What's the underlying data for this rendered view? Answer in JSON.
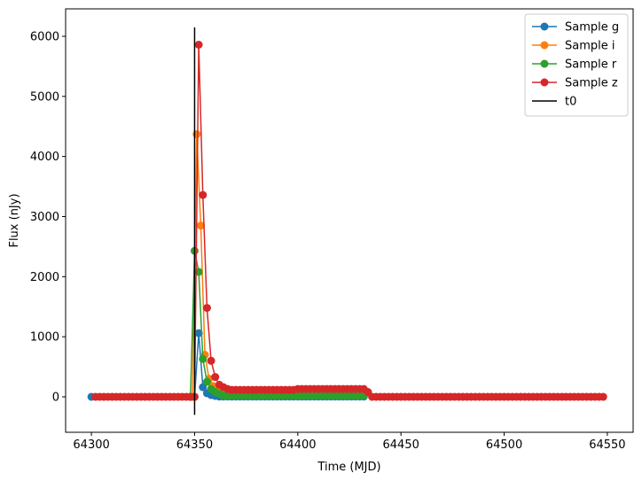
{
  "chart_data": {
    "type": "line",
    "xlabel": "Time (MJD)",
    "ylabel": "Flux (nJy)",
    "xlim": [
      64287.5,
      64562.5
    ],
    "ylim": [
      -590,
      6457
    ],
    "xticks": [
      64300,
      64350,
      64400,
      64450,
      64500,
      64550
    ],
    "yticks": [
      0,
      1000,
      2000,
      3000,
      4000,
      5000,
      6000
    ],
    "legend": "upper right",
    "series": [
      {
        "name": "Sample g",
        "color": "#1f77b4",
        "markers": true,
        "x": [
          64300,
          64348,
          64350,
          64352,
          64354,
          64356,
          64358,
          64360,
          64362,
          64364,
          64366,
          64368,
          64370,
          64372,
          64374,
          64376,
          64378,
          64380,
          64382,
          64384,
          64386,
          64388,
          64390,
          64392,
          64394,
          64396,
          64398,
          64400,
          64402,
          64404,
          64406,
          64408,
          64410,
          64412,
          64414,
          64416,
          64418,
          64420,
          64422,
          64424,
          64426,
          64428,
          64430,
          64432
        ],
        "values": [
          0,
          0,
          0,
          1060,
          160,
          60,
          30,
          15,
          5,
          5,
          5,
          5,
          5,
          5,
          5,
          5,
          5,
          5,
          5,
          5,
          5,
          5,
          5,
          5,
          5,
          5,
          5,
          5,
          5,
          5,
          5,
          5,
          5,
          5,
          5,
          5,
          5,
          5,
          5,
          5,
          5,
          5,
          5,
          5
        ]
      },
      {
        "name": "Sample i",
        "color": "#ff7f0e",
        "markers": true,
        "x": [
          64349,
          64351,
          64353,
          64355,
          64357,
          64359,
          64361,
          64363,
          64365,
          64367,
          64369,
          64371,
          64373,
          64375,
          64377,
          64379,
          64381,
          64383,
          64385,
          64387,
          64389,
          64391,
          64393,
          64395,
          64397,
          64399,
          64401,
          64403,
          64405,
          64407,
          64409,
          64411,
          64413,
          64415,
          64417,
          64419,
          64421,
          64423,
          64425,
          64427,
          64429,
          64431,
          64433
        ],
        "values": [
          0,
          4370,
          2850,
          700,
          300,
          180,
          120,
          90,
          60,
          60,
          60,
          60,
          60,
          60,
          60,
          60,
          60,
          60,
          60,
          60,
          60,
          60,
          60,
          60,
          60,
          60,
          60,
          60,
          60,
          60,
          60,
          60,
          60,
          60,
          60,
          60,
          60,
          60,
          60,
          60,
          60,
          60,
          60
        ]
      },
      {
        "name": "Sample r",
        "color": "#2ca02c",
        "markers": true,
        "x": [
          64348,
          64350,
          64352,
          64354,
          64356,
          64358,
          64360,
          64362,
          64364,
          64366,
          64368,
          64370,
          64372,
          64374,
          64376,
          64378,
          64380,
          64382,
          64384,
          64386,
          64388,
          64390,
          64392,
          64394,
          64396,
          64398,
          64400,
          64402,
          64404,
          64406,
          64408,
          64410,
          64412,
          64414,
          64416,
          64418,
          64420,
          64422,
          64424,
          64426,
          64428,
          64430,
          64432
        ],
        "values": [
          0,
          2430,
          2080,
          630,
          250,
          130,
          80,
          50,
          20,
          20,
          20,
          20,
          20,
          20,
          20,
          20,
          20,
          20,
          20,
          20,
          20,
          20,
          20,
          20,
          20,
          20,
          20,
          20,
          20,
          20,
          20,
          20,
          20,
          20,
          20,
          20,
          20,
          20,
          20,
          20,
          20,
          20,
          20
        ]
      },
      {
        "name": "Sample z",
        "color": "#d62728",
        "markers": true,
        "x": [
          64302,
          64304,
          64306,
          64308,
          64310,
          64312,
          64314,
          64316,
          64318,
          64320,
          64322,
          64324,
          64326,
          64328,
          64330,
          64332,
          64334,
          64336,
          64338,
          64340,
          64342,
          64344,
          64346,
          64348,
          64350,
          64352,
          64354,
          64356,
          64358,
          64360,
          64362,
          64364,
          64366,
          64368,
          64370,
          64372,
          64374,
          64376,
          64378,
          64380,
          64382,
          64384,
          64386,
          64388,
          64390,
          64392,
          64394,
          64396,
          64398,
          64400,
          64402,
          64404,
          64406,
          64408,
          64410,
          64412,
          64414,
          64416,
          64418,
          64420,
          64422,
          64424,
          64426,
          64428,
          64430,
          64432,
          64434,
          64436,
          64438,
          64440,
          64442,
          64444,
          64446,
          64448,
          64450,
          64452,
          64454,
          64456,
          64458,
          64460,
          64462,
          64464,
          64466,
          64468,
          64470,
          64472,
          64474,
          64476,
          64478,
          64480,
          64482,
          64484,
          64486,
          64488,
          64490,
          64492,
          64494,
          64496,
          64498,
          64500,
          64502,
          64504,
          64506,
          64508,
          64510,
          64512,
          64514,
          64516,
          64518,
          64520,
          64522,
          64524,
          64526,
          64528,
          64530,
          64532,
          64534,
          64536,
          64538,
          64540,
          64542,
          64544,
          64546,
          64548
        ],
        "values": [
          0,
          0,
          0,
          0,
          0,
          0,
          0,
          0,
          0,
          0,
          0,
          0,
          0,
          0,
          0,
          0,
          0,
          0,
          0,
          0,
          0,
          0,
          0,
          0,
          0,
          5860,
          3360,
          1480,
          600,
          330,
          200,
          160,
          130,
          115,
          115,
          115,
          115,
          115,
          115,
          115,
          115,
          115,
          115,
          115,
          115,
          115,
          115,
          115,
          115,
          130,
          130,
          130,
          130,
          130,
          130,
          130,
          130,
          130,
          130,
          130,
          130,
          130,
          130,
          130,
          130,
          130,
          80,
          0,
          0,
          0,
          0,
          0,
          0,
          0,
          0,
          0,
          0,
          0,
          0,
          0,
          0,
          0,
          0,
          0,
          0,
          0,
          0,
          0,
          0,
          0,
          0,
          0,
          0,
          0,
          0,
          0,
          0,
          0,
          0,
          0,
          0,
          0,
          0,
          0,
          0,
          0,
          0,
          0,
          0,
          0,
          0,
          0,
          0,
          0,
          0,
          0,
          0,
          0,
          0,
          0,
          0,
          0,
          0,
          0
        ]
      },
      {
        "name": "t0",
        "color": "#000000",
        "markers": false,
        "x": [
          64350,
          64350
        ],
        "values": [
          -300,
          6150
        ]
      }
    ]
  }
}
